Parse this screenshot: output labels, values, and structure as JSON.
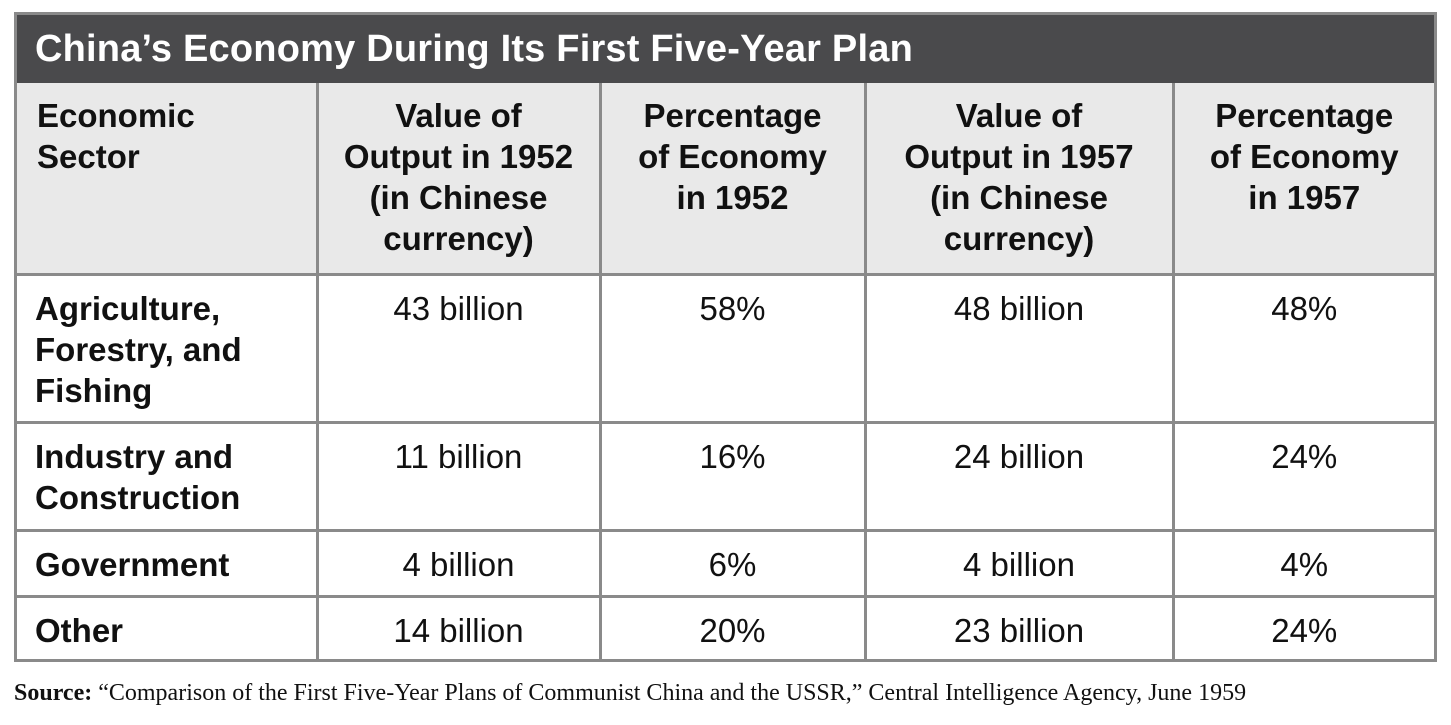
{
  "chart_data": {
    "type": "table",
    "title": "China’s Economy During Its First Five-Year Plan",
    "columns": [
      "Economic Sector",
      "Value of Output in 1952 (in Chinese currency)",
      "Percentage of Economy in 1952",
      "Value of Output in 1957 (in Chinese currency)",
      "Percentage of Economy in 1957"
    ],
    "header_lines": [
      [
        "Economic",
        "Sector"
      ],
      [
        "Value of",
        "Output in 1952",
        "(in Chinese",
        "currency)"
      ],
      [
        "Percentage",
        "of Economy",
        "in 1952"
      ],
      [
        "Value of",
        "Output in 1957",
        "(in Chinese",
        "currency)"
      ],
      [
        "Percentage",
        "of Economy",
        "in 1957"
      ]
    ],
    "rows": [
      {
        "sector_lines": [
          "Agriculture,",
          "Forestry, and",
          "Fishing"
        ],
        "values": [
          "43 billion",
          "58%",
          "48 billion",
          "48%"
        ]
      },
      {
        "sector_lines": [
          "Industry and",
          "Construction"
        ],
        "values": [
          "11 billion",
          "16%",
          "24 billion",
          "24%"
        ]
      },
      {
        "sector_lines": [
          "Government"
        ],
        "values": [
          "4 billion",
          "6%",
          "4 billion",
          "4%"
        ]
      },
      {
        "sector_lines": [
          "Other"
        ],
        "values": [
          "14 billion",
          "20%",
          "23 billion",
          "24%"
        ]
      }
    ]
  },
  "source": {
    "label": "Source:",
    "text": " “Comparison of the First Five-Year Plans of Communist China and the USSR,” Central Intelligence Agency, June 1959"
  },
  "colors": {
    "title_bar": "#4a4a4c",
    "header_bg": "#e9e9e9",
    "grid": "#8a8a8a"
  }
}
